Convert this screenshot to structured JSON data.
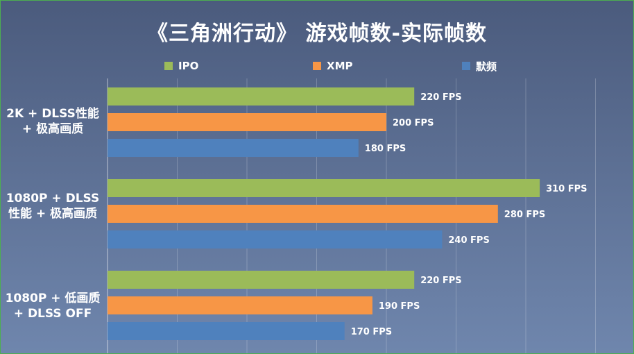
{
  "chart_data": {
    "type": "bar",
    "orientation": "horizontal",
    "title": "《三角洲行动》 游戏帧数-实际帧数",
    "categories": [
      "2K + DLSS性能 + 极高画质",
      "1080P + DLSS 性能 + 极高画质",
      "1080P + 低画质 + DLSS OFF"
    ],
    "series": [
      {
        "name": "IPO",
        "color": "#9bbb59",
        "values": [
          220,
          310,
          220
        ],
        "labels": [
          "220 FPS",
          "310 FPS",
          "220 FPS"
        ]
      },
      {
        "name": "XMP",
        "color": "#f79646",
        "values": [
          200,
          280,
          190
        ],
        "labels": [
          "200 FPS",
          "280 FPS",
          "190 FPS"
        ]
      },
      {
        "name": "默频",
        "color": "#4f81bd",
        "values": [
          180,
          240,
          170
        ],
        "labels": [
          "180 FPS",
          "240 FPS",
          "170 FPS"
        ]
      }
    ],
    "xlim": [
      0,
      375
    ],
    "grid": true,
    "legend_position": "top"
  }
}
